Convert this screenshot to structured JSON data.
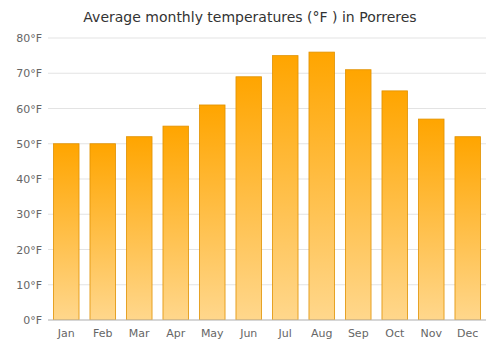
{
  "chart_data": {
    "type": "bar",
    "title": "Average monthly temperatures (°F ) in Porreres",
    "categories": [
      "Jan",
      "Feb",
      "Mar",
      "Apr",
      "May",
      "Jun",
      "Jul",
      "Aug",
      "Sep",
      "Oct",
      "Nov",
      "Dec"
    ],
    "values": [
      50,
      50,
      52,
      55,
      61,
      69,
      75,
      76,
      71,
      65,
      57,
      52
    ],
    "color": "#FFA500",
    "ylim": [
      0,
      80
    ],
    "yticks": [
      {
        "value": 0,
        "label": "0°F"
      },
      {
        "value": 10,
        "label": "10°F"
      },
      {
        "value": 20,
        "label": "20°F"
      },
      {
        "value": 30,
        "label": "30°F"
      },
      {
        "value": 40,
        "label": "40°F"
      },
      {
        "value": 50,
        "label": "50°F"
      },
      {
        "value": 60,
        "label": "60°F"
      },
      {
        "value": 70,
        "label": "70°F"
      },
      {
        "value": 80,
        "label": "80°F"
      }
    ],
    "grid": true
  }
}
